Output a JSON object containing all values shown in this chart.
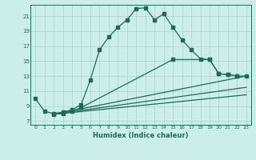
{
  "title": "",
  "xlabel": "Humidex (Indice chaleur)",
  "background_color": "#cceee8",
  "grid_color": "#aad4cc",
  "line_color": "#1a6b5a",
  "xlim": [
    -0.5,
    23.5
  ],
  "ylim": [
    6.5,
    22.5
  ],
  "xticks": [
    0,
    1,
    2,
    3,
    4,
    5,
    6,
    7,
    8,
    9,
    10,
    11,
    12,
    13,
    14,
    15,
    16,
    17,
    18,
    19,
    20,
    21,
    22,
    23
  ],
  "yticks": [
    7,
    9,
    11,
    13,
    15,
    17,
    19,
    21
  ],
  "series1_x": [
    0,
    1,
    2,
    3,
    4,
    5,
    6,
    7,
    8,
    9,
    10,
    11,
    12,
    13,
    14,
    15,
    16,
    17,
    18,
    19,
    20,
    21,
    22
  ],
  "series1_y": [
    10.0,
    8.3,
    8.0,
    8.2,
    8.5,
    9.2,
    12.5,
    16.5,
    18.2,
    19.5,
    20.5,
    22.0,
    22.1,
    20.5,
    21.3,
    19.5,
    17.8,
    16.5,
    15.3,
    15.2,
    13.3,
    13.2,
    13.0
  ],
  "series2_x": [
    2,
    3,
    4,
    5,
    15,
    19,
    20,
    21,
    22,
    23
  ],
  "series2_y": [
    7.9,
    8.0,
    8.3,
    8.8,
    15.2,
    15.2,
    13.3,
    13.2,
    13.0,
    13.0
  ],
  "series3_x": [
    2,
    23
  ],
  "series3_y": [
    7.9,
    13.0
  ],
  "series4_x": [
    2,
    23
  ],
  "series4_y": [
    7.9,
    11.5
  ],
  "series5_x": [
    2,
    23
  ],
  "series5_y": [
    7.9,
    10.5
  ]
}
